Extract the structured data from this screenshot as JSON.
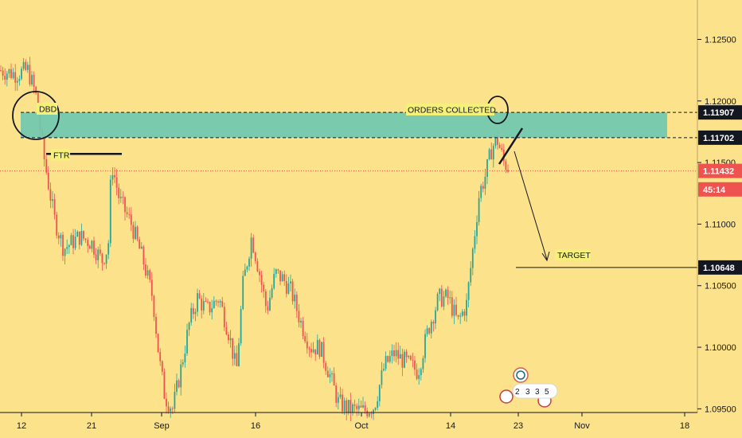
{
  "colors": {
    "background": "#fce28b",
    "zone_fill": "#6fc9b0",
    "up_candle": "#26a69a",
    "down_candle": "#ef5350",
    "price_line": "#ef5350",
    "label_dark": "#131722",
    "annotation_bg": "#f5f07a"
  },
  "chart_data": {
    "type": "candlestick",
    "y_axis": {
      "ylim": [
        1.0947,
        1.1282
      ],
      "ticks": [
        "1.12500",
        "1.12000",
        "1.11500",
        "1.11000",
        "1.10500",
        "1.10000",
        "1.09500"
      ],
      "tick_values": [
        1.125,
        1.12,
        1.115,
        1.11,
        1.105,
        1.1,
        1.095
      ]
    },
    "x_axis": {
      "ticks": [
        "12",
        "21",
        "Sep",
        "16",
        "Oct",
        "14",
        "23",
        "Nov",
        "18"
      ]
    },
    "zone": {
      "top": 1.11907,
      "bottom": 1.11702
    },
    "current_price": 1.11432,
    "target_price": 1.10648,
    "ftr_level": 1.1157
  },
  "price_tags": [
    {
      "label": "1.11907",
      "value": 1.11907,
      "style": "dark"
    },
    {
      "label": "1.11702",
      "value": 1.11702,
      "style": "dark"
    },
    {
      "label": "1.11432",
      "value": 1.11432,
      "style": "red"
    },
    {
      "label": "45:14",
      "value": 1.11282,
      "style": "red"
    },
    {
      "label": "1.10648",
      "value": 1.10648,
      "style": "dark"
    }
  ],
  "annotations": {
    "dbd": "DBD",
    "ftr": "FTR",
    "orders_collected": "ORDERS COLLECTED",
    "target": "TARGET"
  },
  "events_badge": {
    "digits": [
      "2",
      "3",
      "3",
      "5"
    ]
  }
}
